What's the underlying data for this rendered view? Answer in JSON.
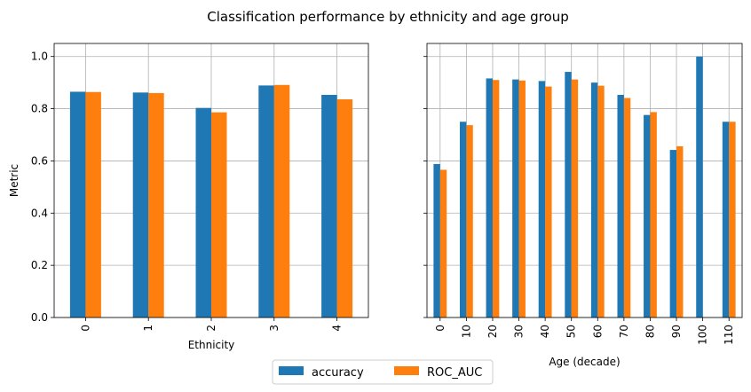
{
  "figure_title": "Classification performance by ethnicity and age group",
  "legend_placement": "bottom-center",
  "colors": {
    "accuracy": "#1f77b4",
    "ROC_AUC": "#ff7f0e",
    "grid": "#b0b0b0"
  },
  "chart_data": [
    {
      "type": "bar",
      "xlabel": "Ethnicity",
      "ylabel": "Metric",
      "ylim": [
        0,
        1.05
      ],
      "yticks": [
        "0.0",
        "0.2",
        "0.4",
        "0.6",
        "0.8",
        "1.0"
      ],
      "grid": true,
      "categories": [
        "0",
        "1",
        "2",
        "3",
        "4"
      ],
      "series": [
        {
          "name": "accuracy",
          "values": [
            0.865,
            0.862,
            0.803,
            0.889,
            0.853
          ]
        },
        {
          "name": "ROC_AUC",
          "values": [
            0.864,
            0.86,
            0.786,
            0.891,
            0.836
          ]
        }
      ]
    },
    {
      "type": "bar",
      "xlabel": "Age (decade)",
      "ylabel": "",
      "ylim": [
        0,
        1.05
      ],
      "yticks": [
        "0.0",
        "0.2",
        "0.4",
        "0.6",
        "0.8",
        "1.0"
      ],
      "grid": true,
      "categories": [
        "0",
        "10",
        "20",
        "30",
        "40",
        "50",
        "60",
        "70",
        "80",
        "90",
        "100",
        "110"
      ],
      "series": [
        {
          "name": "accuracy",
          "values": [
            0.588,
            0.75,
            0.916,
            0.912,
            0.906,
            0.941,
            0.9,
            0.853,
            0.776,
            0.642,
            1.0,
            0.75
          ]
        },
        {
          "name": "ROC_AUC",
          "values": [
            0.566,
            0.737,
            0.91,
            0.908,
            0.885,
            0.912,
            0.888,
            0.841,
            0.787,
            0.656,
            0.0,
            0.75
          ]
        }
      ]
    }
  ]
}
